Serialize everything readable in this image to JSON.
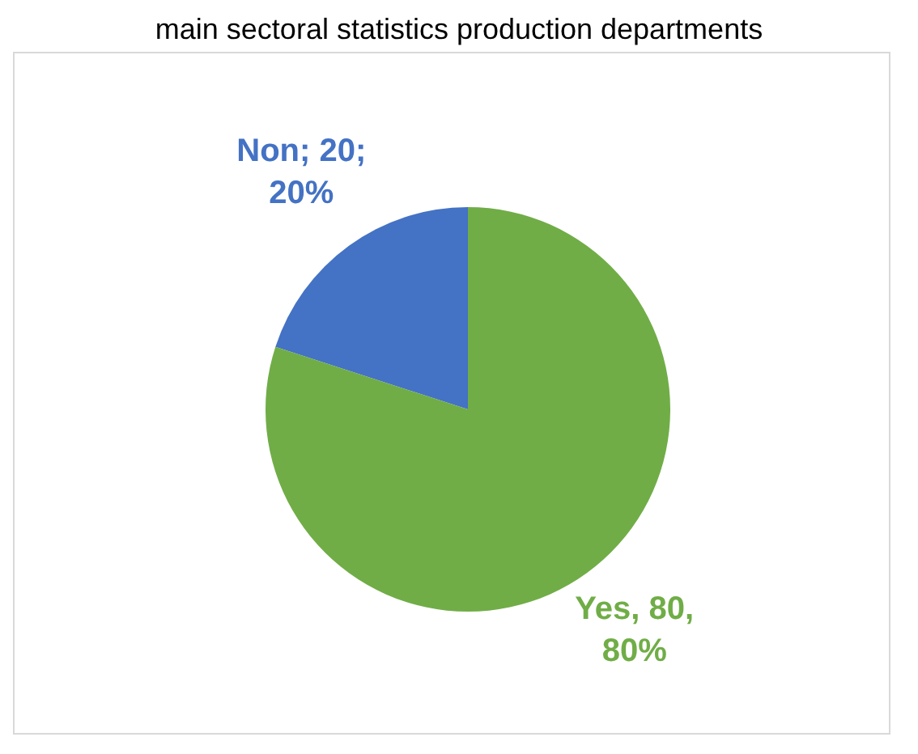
{
  "chart_data": {
    "type": "pie",
    "title": "main sectoral statistics production departments",
    "categories": [
      "Non",
      "Yes"
    ],
    "values": [
      20,
      80
    ],
    "colors": [
      "#4472c4",
      "#70ad47"
    ],
    "value_labels": [
      "20; 20%",
      "80, 80%"
    ],
    "legend": false
  }
}
